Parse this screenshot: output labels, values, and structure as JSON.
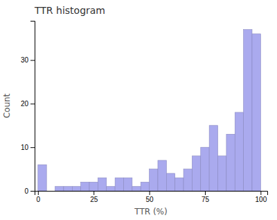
{
  "chart_data": {
    "type": "histogram",
    "title": "TTR histogram",
    "x_label": "TTR (%)",
    "y_label": "Count",
    "bins": [
      0,
      3.8461538461538463,
      7.6923076923076925,
      11.538461538461538,
      15.384615384615385,
      19.23076923076923,
      23.076923076923077,
      26.923076923076923,
      30.76923076923077,
      34.61538461538461,
      38.46153846153846,
      42.30769230769231,
      46.15384615384615,
      50,
      53.84615384615385,
      57.69230769230769,
      61.53846153846154,
      65.38461538461539,
      69.23076923076923,
      73.07692307692308,
      76.92307692307692,
      80.76923076923077,
      84.61538461538461,
      88.46153846153847,
      92.3076923076923,
      96.15384615384616,
      100
    ],
    "values": [
      6,
      0,
      1,
      1,
      1,
      2,
      2,
      3,
      1,
      3,
      3,
      1,
      2,
      5,
      7,
      4,
      3,
      5,
      8,
      10,
      15,
      8,
      13,
      18,
      37,
      36
    ],
    "color": "#aaaaee",
    "xlim": [
      -1.5,
      103
    ],
    "xticks": [
      0,
      25,
      50,
      75,
      100
    ],
    "ylim": [
      0,
      39
    ],
    "yticks": [
      0,
      10,
      20,
      30
    ],
    "grid": false
  }
}
